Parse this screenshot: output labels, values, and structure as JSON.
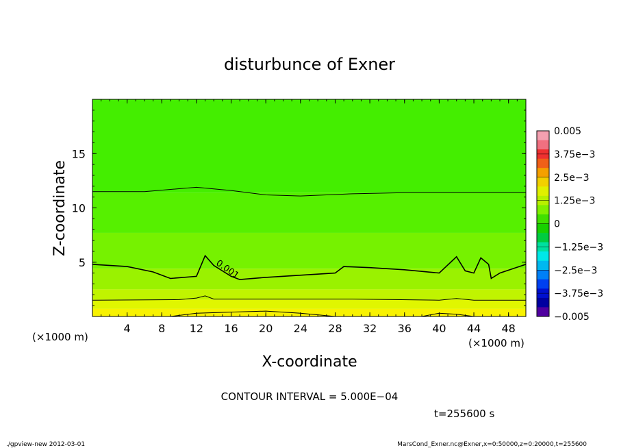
{
  "chart_data": {
    "type": "heatmap",
    "title": "disturbunce of Exner",
    "xlabel": "X-coordinate",
    "ylabel": "Z-coordinate",
    "x_unit": "(×1000 m)",
    "y_unit": "(×1000 m)",
    "xlim": [
      0,
      50
    ],
    "ylim": [
      0,
      20
    ],
    "x_ticks": [
      "4",
      "8",
      "12",
      "16",
      "20",
      "24",
      "28",
      "32",
      "36",
      "40",
      "44",
      "48"
    ],
    "y_ticks": [
      "5",
      "10",
      "15"
    ],
    "colorbar": {
      "labels": [
        "0.005",
        "3.75e−3",
        "2.5e−3",
        "1.25e−3",
        "0",
        "−1.25e−3",
        "−2.5e−3",
        "−3.75e−3",
        "−0.005"
      ],
      "range": [
        -0.005,
        0.005
      ],
      "colors": [
        "#f4a0b0",
        "#f07080",
        "#ee3030",
        "#f06018",
        "#f5a000",
        "#f2d000",
        "#e0f000",
        "#b8f000",
        "#80f000",
        "#40e000",
        "#18d000",
        "#00cc40",
        "#00e0a0",
        "#00e8e8",
        "#00b8f0",
        "#0080f8",
        "#0040f0",
        "#0010d0",
        "#0000a0",
        "#5000a0"
      ]
    },
    "filled_levels": [
      {
        "z_top": 20.0,
        "value": 0.0005,
        "color": "#44ee00"
      },
      {
        "z_top": 11.4,
        "value": 0.00075,
        "color": "#56f000"
      },
      {
        "z_top": 7.7,
        "value": 0.00095,
        "color": "#76f200"
      },
      {
        "z_top": 4.4,
        "value": 0.0012,
        "color": "#9af200"
      },
      {
        "z_top": 2.5,
        "value": 0.0014,
        "color": "#c0f400"
      },
      {
        "z_top": 1.55,
        "value": 0.0017,
        "color": "#e0f600"
      },
      {
        "z_top": 0.7,
        "value": 0.0019,
        "color": "#f8f200"
      }
    ],
    "contours": [
      {
        "level": 0.0005,
        "z_profile": [
          [
            0,
            11.5
          ],
          [
            6,
            11.5
          ],
          [
            12,
            11.9
          ],
          [
            16,
            11.6
          ],
          [
            20,
            11.2
          ],
          [
            24,
            11.1
          ],
          [
            30,
            11.3
          ],
          [
            36,
            11.4
          ],
          [
            44,
            11.4
          ],
          [
            50,
            11.4
          ]
        ]
      },
      {
        "level": 0.001,
        "label": "0.001",
        "z_profile": [
          [
            0,
            4.8
          ],
          [
            4,
            4.6
          ],
          [
            7,
            4.1
          ],
          [
            9,
            3.5
          ],
          [
            12,
            3.7
          ],
          [
            13,
            5.6
          ],
          [
            14,
            4.7
          ],
          [
            16,
            3.7
          ],
          [
            17,
            3.4
          ],
          [
            20,
            3.6
          ],
          [
            28,
            4.0
          ],
          [
            29,
            4.6
          ],
          [
            32,
            4.5
          ],
          [
            36,
            4.3
          ],
          [
            40,
            4.0
          ],
          [
            42,
            5.5
          ],
          [
            43,
            4.2
          ],
          [
            44,
            4.0
          ],
          [
            44.8,
            5.4
          ],
          [
            45.7,
            4.8
          ],
          [
            46,
            3.5
          ],
          [
            47,
            4.0
          ],
          [
            50,
            4.8
          ]
        ]
      },
      {
        "level": 0.0015,
        "z_profile": [
          [
            0,
            1.5
          ],
          [
            10,
            1.55
          ],
          [
            12,
            1.7
          ],
          [
            13,
            1.9
          ],
          [
            14,
            1.6
          ],
          [
            20,
            1.6
          ],
          [
            30,
            1.6
          ],
          [
            40,
            1.5
          ],
          [
            42,
            1.65
          ],
          [
            44,
            1.5
          ],
          [
            50,
            1.5
          ]
        ]
      },
      {
        "level": 0.002,
        "z_profile": [
          [
            9,
            0.0
          ],
          [
            12,
            0.3
          ],
          [
            20,
            0.5
          ],
          [
            24,
            0.3
          ],
          [
            28,
            0.0
          ]
        ]
      },
      {
        "level": 0.002,
        "z_profile": [
          [
            38,
            0.0
          ],
          [
            40,
            0.3
          ],
          [
            42,
            0.2
          ],
          [
            44,
            0.0
          ]
        ]
      }
    ]
  },
  "contour_interval": "CONTOUR INTERVAL = 5.000E−04",
  "time_label": "t=255600 s",
  "footer_left": "./gpview-new   2012-03-01",
  "footer_right": "MarsCond_Exner.nc@Exner,x=0:50000,z=0:20000,t=255600"
}
